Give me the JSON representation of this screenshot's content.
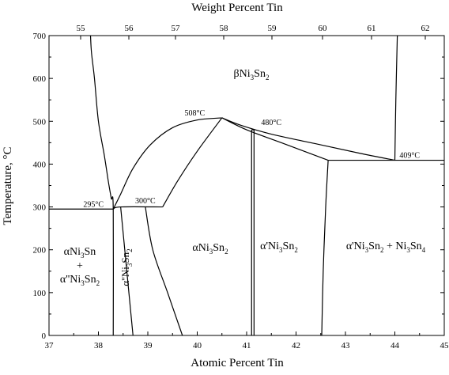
{
  "chart_data": {
    "type": "phase-diagram",
    "top_axis": {
      "label": "Weight Percent Tin",
      "ticks": [
        "55",
        "56",
        "57",
        "58",
        "59",
        "60",
        "61",
        "62"
      ]
    },
    "bottom_axis": {
      "label": "Atomic Percent Tin",
      "range": [
        37,
        45
      ],
      "ticks": [
        "37",
        "38",
        "39",
        "40",
        "41",
        "42",
        "43",
        "44",
        "45"
      ]
    },
    "left_axis": {
      "label": "Temperature, °C",
      "range": [
        0,
        700
      ],
      "ticks": [
        "0",
        "100",
        "200",
        "300",
        "400",
        "500",
        "600",
        "700"
      ]
    },
    "annotations": [
      {
        "id": "t295",
        "text": "295°C",
        "at_pct": 37.9,
        "at_T": 300
      },
      {
        "id": "t300",
        "text": "300°C",
        "at_pct": 38.95,
        "at_T": 308
      },
      {
        "id": "t508",
        "text": "508°C",
        "at_pct": 39.95,
        "at_T": 513
      },
      {
        "id": "t480",
        "text": "480°C",
        "at_pct": 41.5,
        "at_T": 491
      },
      {
        "id": "t409",
        "text": "409°C",
        "at_pct": 44.3,
        "at_T": 415
      }
    ],
    "phase_labels": {
      "beta": {
        "base": "βNi",
        "s1": "3",
        "mid": "Sn",
        "s2": "2"
      },
      "alpha_sn_l1": {
        "text": "αNi3Sn",
        "base": "αNi",
        "s1": "3",
        "mid": "Sn"
      },
      "plus": "+",
      "alpha_sn_l2": {
        "base": "α''Ni",
        "s1": "3",
        "mid": "Sn",
        "s2": "2"
      },
      "alpha_dd": {
        "base": "α''Ni",
        "s1": "3",
        "mid": "Sn",
        "s2": "2"
      },
      "alpha": {
        "base": "αNi",
        "s1": "3",
        "mid": "Sn",
        "s2": "2"
      },
      "alpha_p": {
        "base": "α'Ni",
        "s1": "3",
        "mid": "Sn",
        "s2": "2"
      },
      "alpha_p_plus": {
        "base": "α'Ni",
        "s1": "3",
        "mid": "Sn",
        "s2": "2",
        "plus": " + Ni",
        "s3": "3",
        "mid2": "Sn",
        "s4": "4"
      }
    },
    "boundaries": {
      "eutectoid_295": [
        [
          37,
          295
        ],
        [
          38.3,
          295
        ]
      ],
      "eutectoid_409": [
        [
          42.65,
          409
        ],
        [
          45,
          409
        ]
      ],
      "left_beta": [
        [
          37.84,
          700
        ],
        [
          37.86,
          660
        ],
        [
          37.92,
          600
        ],
        [
          38.0,
          500
        ],
        [
          38.12,
          420
        ],
        [
          38.2,
          360
        ],
        [
          38.26,
          320
        ],
        [
          38.3,
          295
        ],
        [
          38.3,
          0
        ]
      ],
      "dome_left": [
        [
          38.3,
          295
        ],
        [
          38.45,
          330
        ],
        [
          38.7,
          390
        ],
        [
          39.05,
          445
        ],
        [
          39.5,
          485
        ],
        [
          40.0,
          503
        ],
        [
          40.5,
          508
        ]
      ],
      "dome_right_inner": [
        [
          40.5,
          508
        ],
        [
          40.0,
          430
        ],
        [
          39.6,
          360
        ],
        [
          39.3,
          300
        ]
      ],
      "plateau_300": [
        [
          38.3,
          295
        ],
        [
          38.45,
          300
        ],
        [
          39.3,
          300
        ]
      ],
      "alpha_dd_left": [
        [
          38.45,
          300
        ],
        [
          38.7,
          0
        ]
      ],
      "alpha_dd_right": [
        [
          38.95,
          300
        ],
        [
          39.1,
          200
        ],
        [
          39.4,
          100
        ],
        [
          39.7,
          0
        ]
      ],
      "alpha_right": [
        [
          41.1,
          480
        ],
        [
          41.1,
          0
        ]
      ],
      "alpha_right2": [
        [
          41.15,
          480
        ],
        [
          41.15,
          0
        ]
      ],
      "beta_upper": [
        [
          40.5,
          508
        ],
        [
          40.9,
          490
        ],
        [
          41.5,
          470
        ],
        [
          42.5,
          445
        ],
        [
          43.3,
          425
        ],
        [
          44.0,
          409
        ]
      ],
      "beta_lower": [
        [
          40.5,
          508
        ],
        [
          41.0,
          480
        ],
        [
          41.7,
          450
        ],
        [
          42.65,
          409
        ]
      ],
      "ordering_480": [
        [
          41.1,
          480
        ],
        [
          41.15,
          480
        ]
      ],
      "alpha_p_right": [
        [
          42.65,
          409
        ],
        [
          42.6,
          300
        ],
        [
          42.55,
          150
        ],
        [
          42.52,
          0
        ]
      ],
      "right_beta": [
        [
          44.0,
          409
        ],
        [
          44.02,
          550
        ],
        [
          44.05,
          700
        ]
      ]
    }
  }
}
